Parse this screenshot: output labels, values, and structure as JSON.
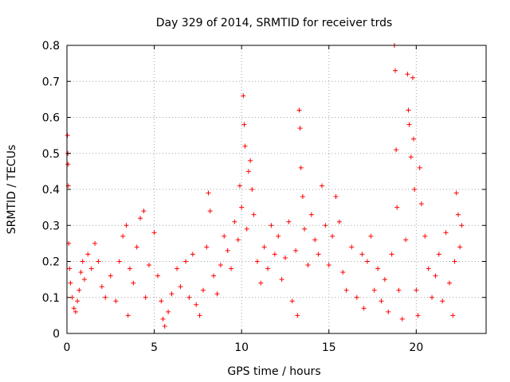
{
  "chart_data": {
    "type": "scatter",
    "title": "Day 329 of 2014, SRMTID for receiver trds",
    "xlabel": "GPS time / hours",
    "ylabel": "SRMTID / TECUs",
    "xlim": [
      0,
      24
    ],
    "ylim": [
      0,
      0.8
    ],
    "xticks": [
      0,
      5,
      10,
      15,
      20
    ],
    "yticks": [
      0,
      0.1,
      0.2,
      0.3,
      0.4,
      0.5,
      0.6,
      0.7,
      0.8
    ],
    "grid": true,
    "marker": "+",
    "color": "#ff0000",
    "series": [
      {
        "name": "SRMTID",
        "points": [
          [
            0.03,
            0.55
          ],
          [
            0.05,
            0.5
          ],
          [
            0.06,
            0.47
          ],
          [
            0.08,
            0.41
          ],
          [
            0.1,
            0.25
          ],
          [
            0.15,
            0.18
          ],
          [
            0.2,
            0.14
          ],
          [
            0.3,
            0.1
          ],
          [
            0.4,
            0.07
          ],
          [
            0.5,
            0.06
          ],
          [
            0.6,
            0.09
          ],
          [
            0.7,
            0.12
          ],
          [
            0.8,
            0.17
          ],
          [
            0.9,
            0.2
          ],
          [
            1.0,
            0.15
          ],
          [
            1.2,
            0.22
          ],
          [
            1.4,
            0.18
          ],
          [
            1.6,
            0.25
          ],
          [
            1.8,
            0.2
          ],
          [
            2.0,
            0.13
          ],
          [
            2.2,
            0.1
          ],
          [
            2.5,
            0.16
          ],
          [
            2.8,
            0.09
          ],
          [
            3.0,
            0.2
          ],
          [
            3.2,
            0.27
          ],
          [
            3.4,
            0.3
          ],
          [
            3.5,
            0.05
          ],
          [
            3.6,
            0.18
          ],
          [
            3.8,
            0.14
          ],
          [
            4.0,
            0.24
          ],
          [
            4.2,
            0.32
          ],
          [
            4.4,
            0.34
          ],
          [
            4.5,
            0.1
          ],
          [
            4.7,
            0.19
          ],
          [
            5.0,
            0.28
          ],
          [
            5.2,
            0.16
          ],
          [
            5.4,
            0.09
          ],
          [
            5.5,
            0.04
          ],
          [
            5.6,
            0.02
          ],
          [
            5.8,
            0.06
          ],
          [
            6.0,
            0.11
          ],
          [
            6.3,
            0.18
          ],
          [
            6.5,
            0.13
          ],
          [
            6.8,
            0.2
          ],
          [
            7.0,
            0.1
          ],
          [
            7.2,
            0.22
          ],
          [
            7.4,
            0.08
          ],
          [
            7.6,
            0.05
          ],
          [
            7.8,
            0.12
          ],
          [
            8.0,
            0.24
          ],
          [
            8.1,
            0.39
          ],
          [
            8.2,
            0.34
          ],
          [
            8.4,
            0.16
          ],
          [
            8.6,
            0.11
          ],
          [
            8.8,
            0.19
          ],
          [
            9.0,
            0.27
          ],
          [
            9.2,
            0.23
          ],
          [
            9.4,
            0.18
          ],
          [
            9.6,
            0.31
          ],
          [
            9.8,
            0.26
          ],
          [
            9.9,
            0.41
          ],
          [
            10.0,
            0.35
          ],
          [
            10.1,
            0.66
          ],
          [
            10.15,
            0.58
          ],
          [
            10.2,
            0.52
          ],
          [
            10.3,
            0.29
          ],
          [
            10.4,
            0.45
          ],
          [
            10.5,
            0.48
          ],
          [
            10.6,
            0.4
          ],
          [
            10.7,
            0.33
          ],
          [
            10.9,
            0.2
          ],
          [
            11.1,
            0.14
          ],
          [
            11.3,
            0.24
          ],
          [
            11.5,
            0.18
          ],
          [
            11.7,
            0.3
          ],
          [
            11.9,
            0.22
          ],
          [
            12.1,
            0.27
          ],
          [
            12.3,
            0.15
          ],
          [
            12.5,
            0.21
          ],
          [
            12.7,
            0.31
          ],
          [
            12.9,
            0.09
          ],
          [
            13.1,
            0.23
          ],
          [
            13.2,
            0.05
          ],
          [
            13.3,
            0.62
          ],
          [
            13.35,
            0.57
          ],
          [
            13.4,
            0.46
          ],
          [
            13.5,
            0.38
          ],
          [
            13.6,
            0.29
          ],
          [
            13.8,
            0.19
          ],
          [
            14.0,
            0.33
          ],
          [
            14.2,
            0.26
          ],
          [
            14.4,
            0.22
          ],
          [
            14.6,
            0.41
          ],
          [
            14.8,
            0.3
          ],
          [
            15.0,
            0.19
          ],
          [
            15.2,
            0.27
          ],
          [
            15.4,
            0.38
          ],
          [
            15.6,
            0.31
          ],
          [
            15.8,
            0.17
          ],
          [
            16.0,
            0.12
          ],
          [
            16.3,
            0.24
          ],
          [
            16.6,
            0.1
          ],
          [
            16.9,
            0.22
          ],
          [
            17.0,
            0.07
          ],
          [
            17.2,
            0.2
          ],
          [
            17.4,
            0.27
          ],
          [
            17.6,
            0.12
          ],
          [
            17.8,
            0.18
          ],
          [
            18.0,
            0.09
          ],
          [
            18.2,
            0.15
          ],
          [
            18.4,
            0.06
          ],
          [
            18.6,
            0.22
          ],
          [
            18.75,
            0.8
          ],
          [
            18.8,
            0.73
          ],
          [
            18.85,
            0.51
          ],
          [
            18.9,
            0.35
          ],
          [
            19.0,
            0.12
          ],
          [
            19.2,
            0.04
          ],
          [
            19.4,
            0.26
          ],
          [
            19.5,
            0.72
          ],
          [
            19.55,
            0.62
          ],
          [
            19.6,
            0.58
          ],
          [
            19.7,
            0.49
          ],
          [
            19.8,
            0.71
          ],
          [
            19.85,
            0.54
          ],
          [
            19.9,
            0.4
          ],
          [
            20.0,
            0.12
          ],
          [
            20.1,
            0.05
          ],
          [
            20.2,
            0.46
          ],
          [
            20.3,
            0.36
          ],
          [
            20.5,
            0.27
          ],
          [
            20.7,
            0.18
          ],
          [
            20.9,
            0.1
          ],
          [
            21.1,
            0.16
          ],
          [
            21.3,
            0.22
          ],
          [
            21.5,
            0.09
          ],
          [
            21.7,
            0.28
          ],
          [
            21.9,
            0.14
          ],
          [
            22.1,
            0.05
          ],
          [
            22.2,
            0.2
          ],
          [
            22.3,
            0.39
          ],
          [
            22.4,
            0.33
          ],
          [
            22.5,
            0.24
          ],
          [
            22.6,
            0.3
          ]
        ]
      }
    ]
  }
}
